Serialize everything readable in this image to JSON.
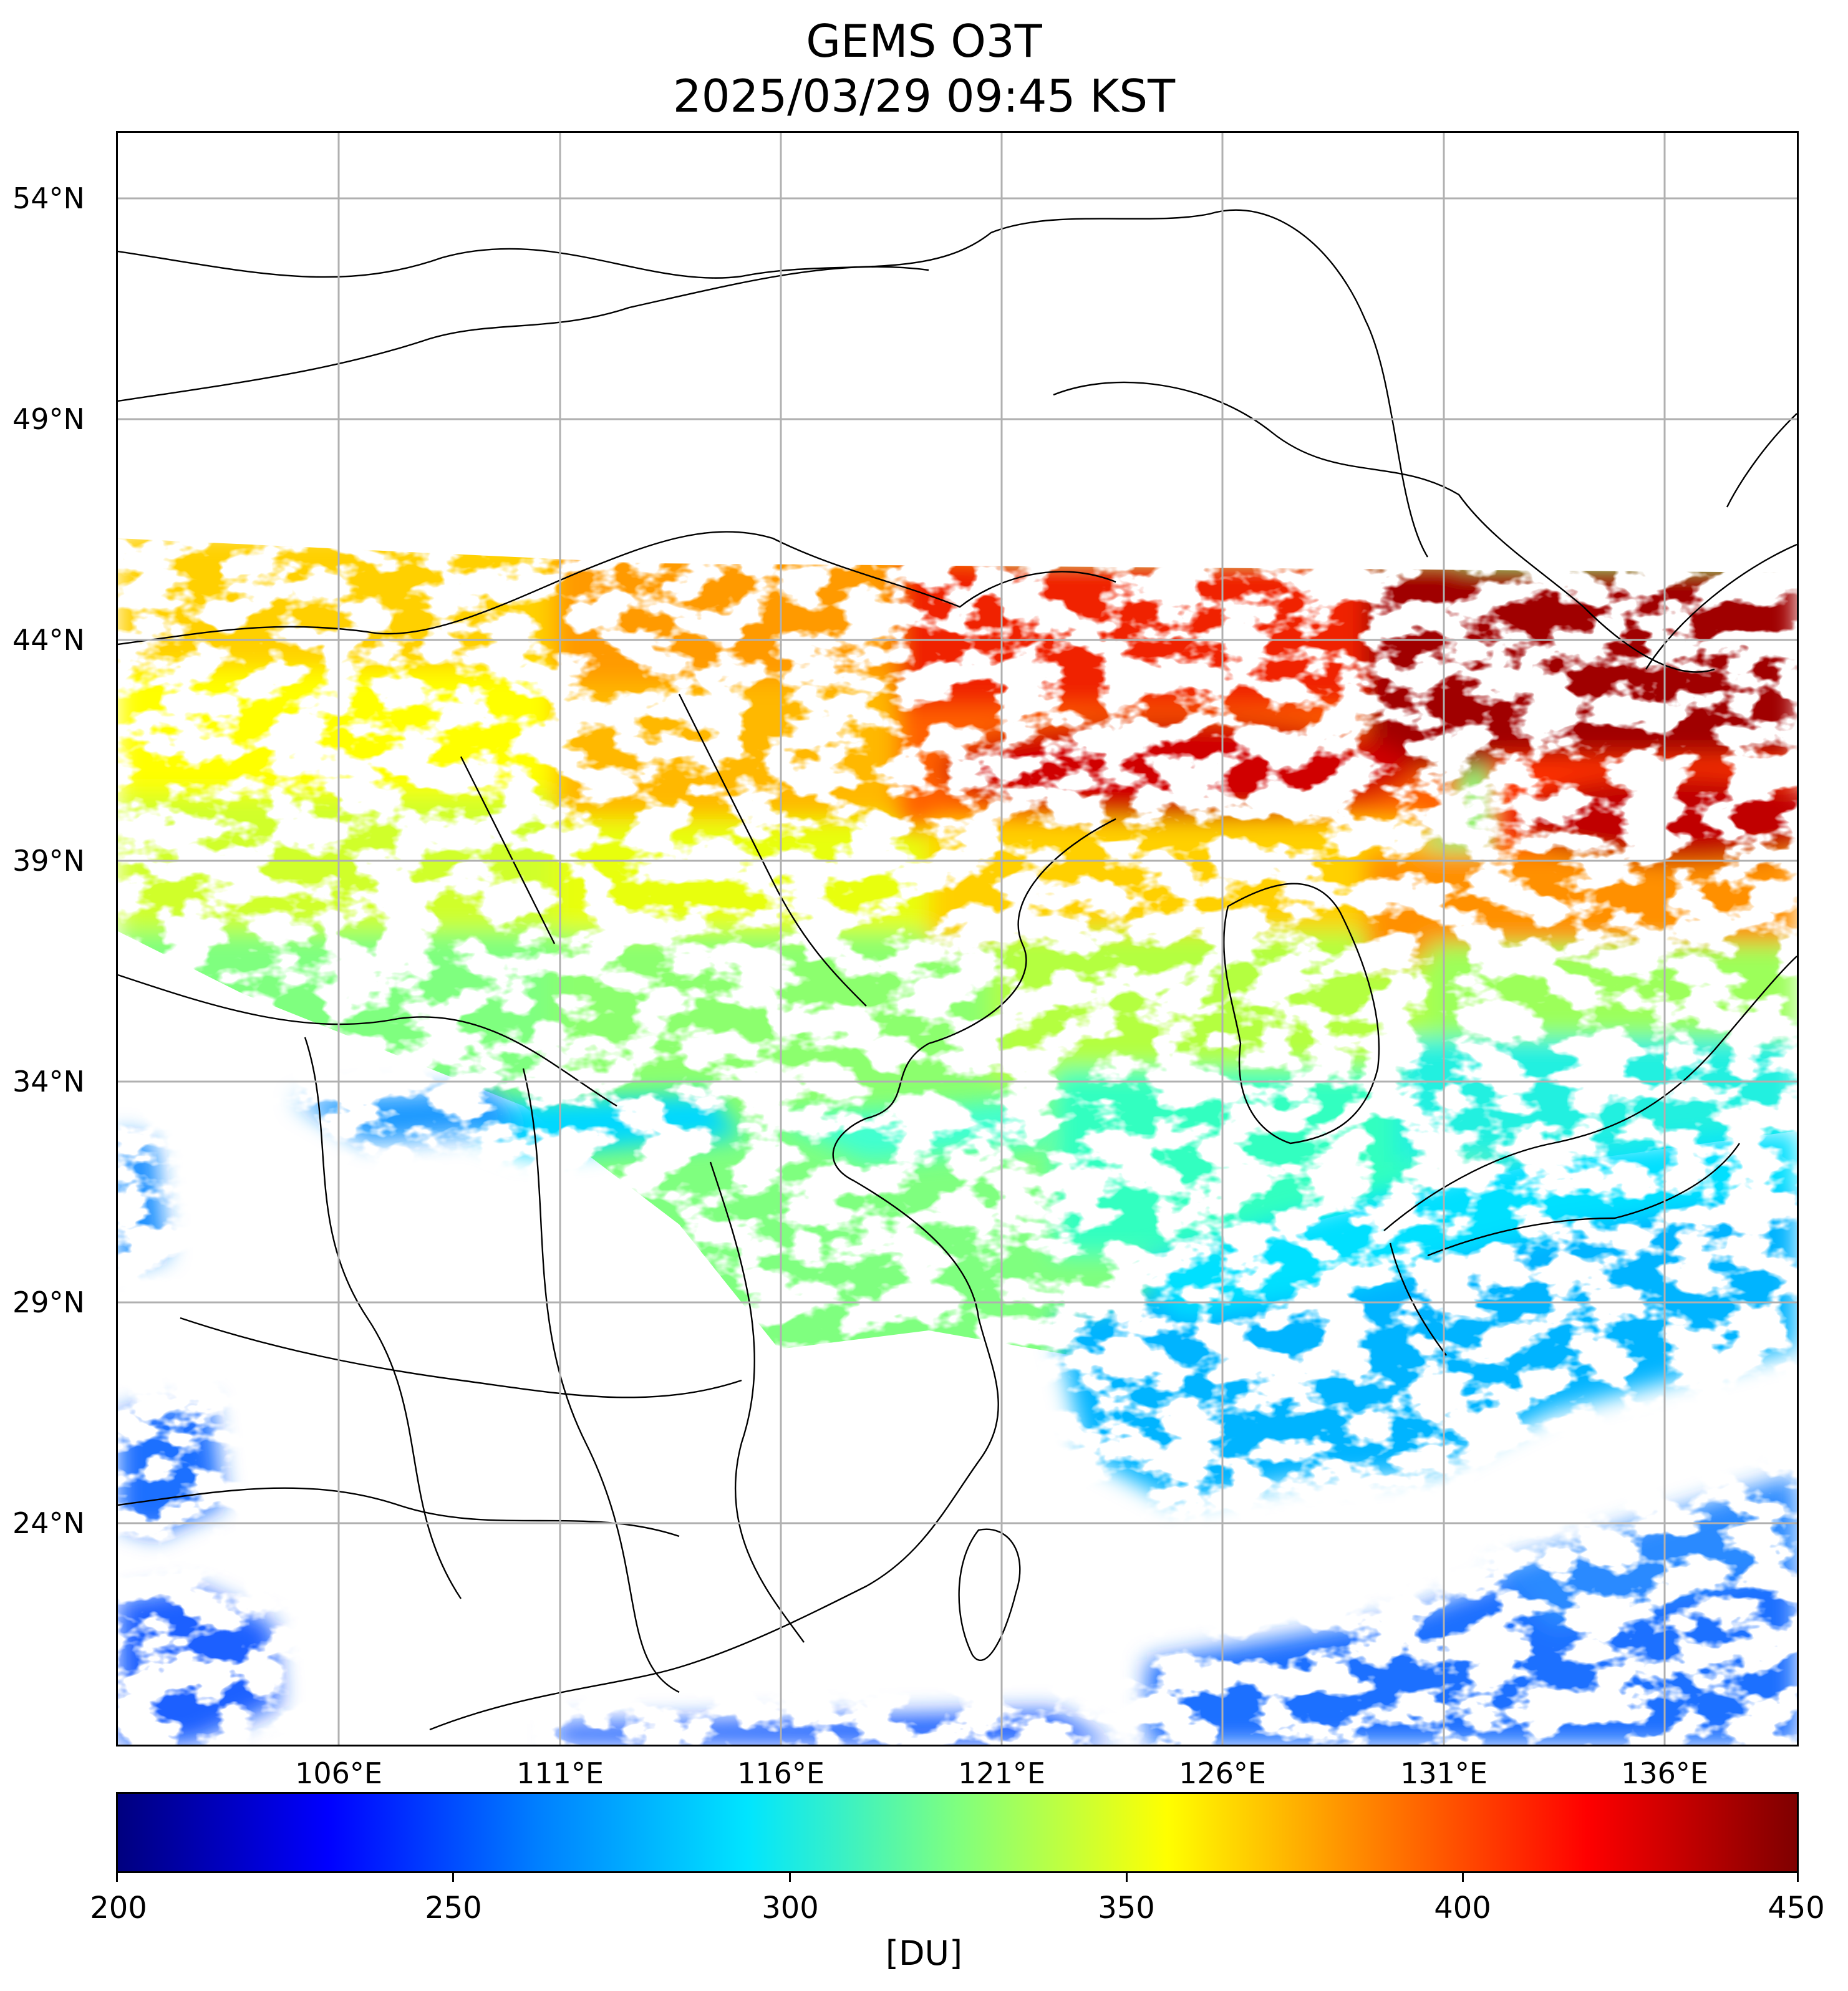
{
  "title": {
    "line1": "GEMS O3T",
    "line2": "2025/03/29 09:45 KST"
  },
  "latitude_labels": [
    "54°N",
    "49°N",
    "44°N",
    "39°N",
    "34°N",
    "29°N",
    "24°N"
  ],
  "longitude_labels": [
    "106°E",
    "111°E",
    "116°E",
    "121°E",
    "126°E",
    "131°E",
    "136°E"
  ],
  "colorbar": {
    "tick_labels": [
      "200",
      "250",
      "300",
      "350",
      "400",
      "450"
    ],
    "unit": "[DU]",
    "colormap": "jet",
    "colors": [
      "#00007f",
      "#0000ff",
      "#007fff",
      "#00e5ff",
      "#7fff7f",
      "#ffff00",
      "#ff7f00",
      "#ff0000",
      "#7f0000"
    ]
  },
  "map": {
    "grid": true,
    "projection": "PlateCarree",
    "lon_range_deg": [
      101,
      139
    ],
    "lat_range_deg": [
      19.5,
      55.5
    ],
    "coverage_note_colors": {
      "missing_or_cloud": "#ffffff",
      "borders": "#000000",
      "grid": "#b0b0b0"
    }
  }
}
